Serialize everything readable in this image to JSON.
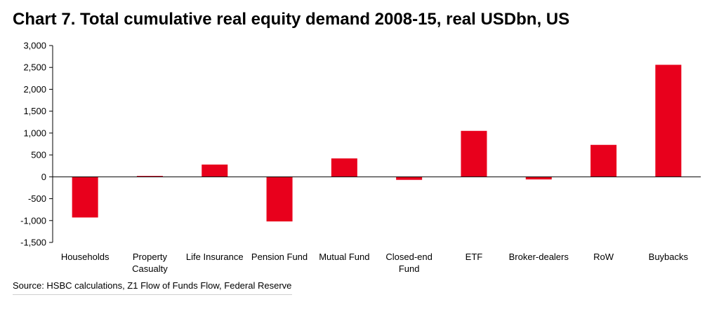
{
  "chart_data": {
    "type": "bar",
    "title": "Chart 7. Total cumulative real equity demand 2008-15, real USDbn, US",
    "categories": [
      [
        "Households"
      ],
      [
        "Property",
        "Casualty"
      ],
      [
        "Life Insurance"
      ],
      [
        "Pension Fund"
      ],
      [
        "Mutual Fund"
      ],
      [
        "Closed-end",
        "Fund"
      ],
      [
        "ETF"
      ],
      [
        "Broker-dealers"
      ],
      [
        "RoW"
      ],
      [
        "Buybacks"
      ]
    ],
    "values": [
      -930,
      20,
      280,
      -1020,
      420,
      -70,
      1050,
      -60,
      730,
      2560
    ],
    "ylim": [
      -1500,
      3000
    ],
    "yticks": [
      3000,
      2500,
      2000,
      1500,
      1000,
      500,
      0,
      -500,
      -1000,
      -1500
    ],
    "ytick_labels": [
      "3,000",
      "2,500",
      "2,000",
      "1,500",
      "1,000",
      "500",
      "0",
      "-500",
      "-1,000",
      "-1,500"
    ],
    "xlabel": "",
    "ylabel": "",
    "bar_color": "#e8001c",
    "grid": false
  },
  "source": "Source: HSBC calculations, Z1 Flow of Funds Flow, Federal Reserve"
}
